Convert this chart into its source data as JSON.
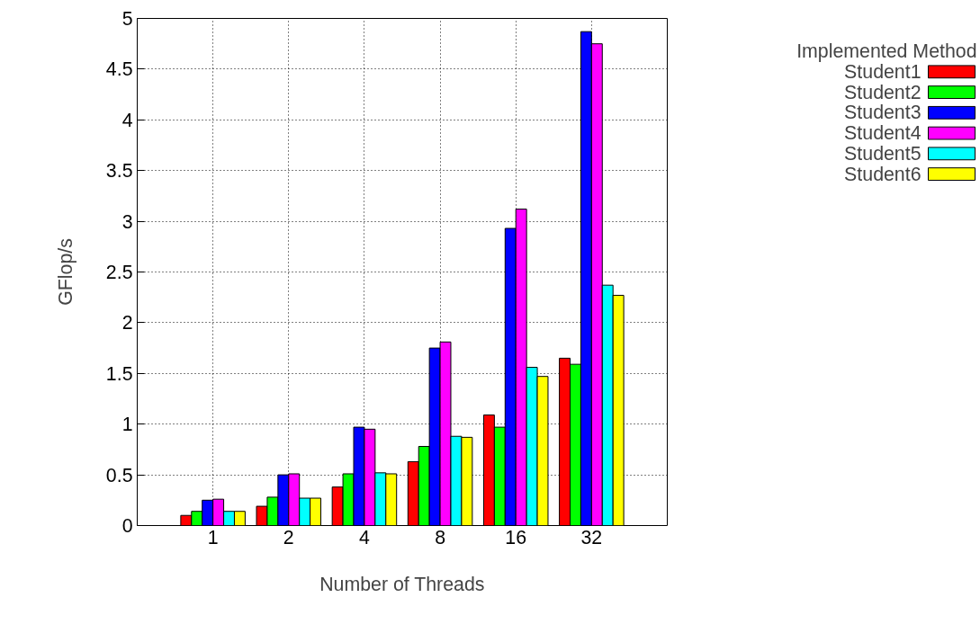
{
  "chart_data": {
    "type": "bar",
    "xlabel": "Number of Threads",
    "ylabel": "GFlop/s",
    "legend_title": "Implemented Method",
    "categories": [
      "1",
      "2",
      "4",
      "8",
      "16",
      "32"
    ],
    "series": [
      {
        "name": "Student1",
        "color": "#ff0000",
        "values": [
          0.1,
          0.19,
          0.38,
          0.63,
          1.09,
          1.65
        ]
      },
      {
        "name": "Student2",
        "color": "#00ff00",
        "values": [
          0.14,
          0.28,
          0.51,
          0.78,
          0.97,
          1.59
        ]
      },
      {
        "name": "Student3",
        "color": "#0000ff",
        "values": [
          0.25,
          0.5,
          0.97,
          1.75,
          2.93,
          4.87
        ]
      },
      {
        "name": "Student4",
        "color": "#ff00ff",
        "values": [
          0.26,
          0.51,
          0.95,
          1.81,
          3.12,
          4.75
        ]
      },
      {
        "name": "Student5",
        "color": "#00ffff",
        "values": [
          0.14,
          0.27,
          0.52,
          0.88,
          1.56,
          2.37
        ]
      },
      {
        "name": "Student6",
        "color": "#ffff00",
        "values": [
          0.14,
          0.27,
          0.51,
          0.87,
          1.47,
          2.27
        ]
      }
    ],
    "ylim": [
      0,
      5
    ],
    "yticks": [
      0,
      0.5,
      1,
      1.5,
      2,
      2.5,
      3,
      3.5,
      4,
      4.5,
      5
    ],
    "grid": true,
    "legend": "top right"
  }
}
